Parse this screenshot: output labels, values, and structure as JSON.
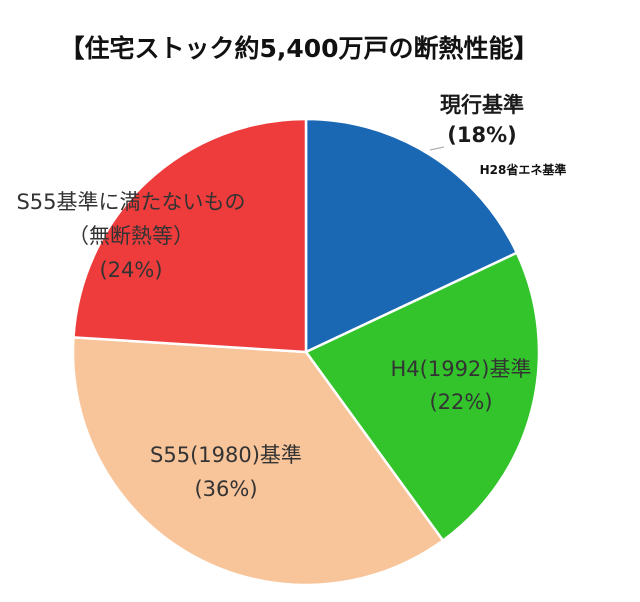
{
  "chart_data": {
    "type": "pie",
    "title": "【住宅ストック約5,400万戸の断熱性能】",
    "slices": [
      {
        "label": "現行基準",
        "value": 18,
        "value_label": "(18%)",
        "color": "#1a67b3",
        "note": "H28省エネ基準"
      },
      {
        "label": "H4(1992)基準",
        "value": 22,
        "value_label": "(22%)",
        "color": "#33c42c"
      },
      {
        "label": "S55(1980)基準",
        "value": 36,
        "value_label": "(36%)",
        "color": "#f8c49a"
      },
      {
        "label": "S55基準に満たないもの",
        "label2": "（無断熱等）",
        "value": 24,
        "value_label": "(24%)",
        "color": "#ee3c3c"
      }
    ],
    "start_angle_deg": 0,
    "direction": "clockwise"
  }
}
